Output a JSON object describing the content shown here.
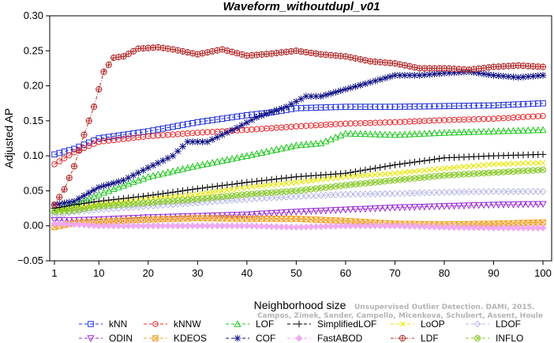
{
  "chart_data": {
    "type": "line",
    "title": "Waveform_withoutdupl_v01",
    "xlabel": "Neighborhood size",
    "ylabel": "Adjusted AP",
    "xlim": [
      1,
      100
    ],
    "ylim": [
      -0.05,
      0.3
    ],
    "xticks": [
      "1",
      "10",
      "20",
      "30",
      "40",
      "50",
      "60",
      "70",
      "80",
      "90",
      "100"
    ],
    "yticks": [
      "−0.05",
      "0.00",
      "0.05",
      "0.10",
      "0.15",
      "0.20",
      "0.25",
      "0.30"
    ],
    "watermark": [
      "Unsupervised Outlier Detection. DAMI, 2015.",
      "Campos, Zimek, Sander, Campello, Micenkova, Schubert, Assent, Houle"
    ],
    "legend_position": "bottom",
    "series": [
      {
        "name": "kNN",
        "color": "#1f2fd6",
        "marker": "square",
        "dash": "dash",
        "points": [
          [
            1,
            0.102
          ],
          [
            5,
            0.11
          ],
          [
            10,
            0.125
          ],
          [
            20,
            0.135
          ],
          [
            30,
            0.148
          ],
          [
            40,
            0.158
          ],
          [
            45,
            0.162
          ],
          [
            50,
            0.168
          ],
          [
            60,
            0.17
          ],
          [
            70,
            0.17
          ],
          [
            80,
            0.171
          ],
          [
            90,
            0.172
          ],
          [
            100,
            0.175
          ]
        ]
      },
      {
        "name": "kNNW",
        "color": "#e6252a",
        "marker": "circle",
        "dash": "dash",
        "points": [
          [
            1,
            0.088
          ],
          [
            5,
            0.105
          ],
          [
            10,
            0.12
          ],
          [
            20,
            0.128
          ],
          [
            30,
            0.133
          ],
          [
            40,
            0.137
          ],
          [
            50,
            0.142
          ],
          [
            60,
            0.146
          ],
          [
            70,
            0.148
          ],
          [
            80,
            0.151
          ],
          [
            90,
            0.153
          ],
          [
            100,
            0.157
          ]
        ]
      },
      {
        "name": "LOF",
        "color": "#1ec81e",
        "marker": "triangle",
        "dash": "dash",
        "points": [
          [
            1,
            0.022
          ],
          [
            5,
            0.03
          ],
          [
            10,
            0.045
          ],
          [
            20,
            0.07
          ],
          [
            30,
            0.086
          ],
          [
            40,
            0.1
          ],
          [
            50,
            0.115
          ],
          [
            55,
            0.118
          ],
          [
            60,
            0.132
          ],
          [
            70,
            0.13
          ],
          [
            80,
            0.133
          ],
          [
            90,
            0.135
          ],
          [
            100,
            0.137
          ]
        ]
      },
      {
        "name": "SimplifiedLOF",
        "color": "#000000",
        "marker": "plus",
        "dash": "dash",
        "points": [
          [
            1,
            0.025
          ],
          [
            5,
            0.03
          ],
          [
            10,
            0.035
          ],
          [
            20,
            0.043
          ],
          [
            30,
            0.053
          ],
          [
            40,
            0.062
          ],
          [
            50,
            0.07
          ],
          [
            60,
            0.075
          ],
          [
            70,
            0.087
          ],
          [
            80,
            0.097
          ],
          [
            90,
            0.1
          ],
          [
            100,
            0.102
          ]
        ]
      },
      {
        "name": "LoOP",
        "color": "#e6e600",
        "marker": "x",
        "dash": "dash",
        "points": [
          [
            1,
            0.02
          ],
          [
            5,
            0.025
          ],
          [
            10,
            0.03
          ],
          [
            20,
            0.038
          ],
          [
            30,
            0.045
          ],
          [
            40,
            0.055
          ],
          [
            50,
            0.062
          ],
          [
            60,
            0.07
          ],
          [
            70,
            0.075
          ],
          [
            80,
            0.082
          ],
          [
            90,
            0.088
          ],
          [
            100,
            0.09
          ]
        ]
      },
      {
        "name": "LDOF",
        "color": "#b8b8e6",
        "marker": "diamond",
        "dash": "dash",
        "points": [
          [
            1,
            0.015
          ],
          [
            5,
            0.02
          ],
          [
            10,
            0.023
          ],
          [
            20,
            0.028
          ],
          [
            30,
            0.033
          ],
          [
            40,
            0.038
          ],
          [
            50,
            0.042
          ],
          [
            60,
            0.045
          ],
          [
            70,
            0.046
          ],
          [
            80,
            0.048
          ],
          [
            90,
            0.049
          ],
          [
            100,
            0.049
          ]
        ]
      },
      {
        "name": "ODIN",
        "color": "#9a28d2",
        "marker": "tri-down",
        "dash": "dash",
        "points": [
          [
            1,
            0.008
          ],
          [
            5,
            0.008
          ],
          [
            10,
            0.009
          ],
          [
            20,
            0.012
          ],
          [
            30,
            0.014
          ],
          [
            40,
            0.016
          ],
          [
            50,
            0.02
          ],
          [
            60,
            0.023
          ],
          [
            70,
            0.026
          ],
          [
            80,
            0.028
          ],
          [
            90,
            0.03
          ],
          [
            100,
            0.031
          ]
        ]
      },
      {
        "name": "KDEOS",
        "color": "#f0a01e",
        "marker": "boxx",
        "dash": "dash",
        "points": [
          [
            1,
            -0.002
          ],
          [
            5,
            0.004
          ],
          [
            10,
            0.006
          ],
          [
            20,
            0.009
          ],
          [
            30,
            0.011
          ],
          [
            40,
            0.01
          ],
          [
            50,
            0.01
          ],
          [
            60,
            0.007
          ],
          [
            70,
            0.003
          ],
          [
            80,
            0.002
          ],
          [
            90,
            0.003
          ],
          [
            100,
            0.005
          ]
        ]
      },
      {
        "name": "COF",
        "color": "#0f0f82",
        "marker": "star",
        "dash": "dash",
        "points": [
          [
            1,
            0.03
          ],
          [
            5,
            0.035
          ],
          [
            10,
            0.055
          ],
          [
            15,
            0.065
          ],
          [
            20,
            0.083
          ],
          [
            25,
            0.1
          ],
          [
            28,
            0.12
          ],
          [
            32,
            0.12
          ],
          [
            38,
            0.14
          ],
          [
            42,
            0.155
          ],
          [
            48,
            0.17
          ],
          [
            52,
            0.185
          ],
          [
            55,
            0.185
          ],
          [
            60,
            0.195
          ],
          [
            65,
            0.205
          ],
          [
            70,
            0.215
          ],
          [
            75,
            0.215
          ],
          [
            80,
            0.218
          ],
          [
            85,
            0.22
          ],
          [
            90,
            0.215
          ],
          [
            95,
            0.212
          ],
          [
            100,
            0.215
          ]
        ]
      },
      {
        "name": "FastABOD",
        "color": "#f0aaf0",
        "marker": "diamond-filled",
        "dash": "dash",
        "points": [
          [
            1,
            0.003
          ],
          [
            5,
            0.002
          ],
          [
            10,
            0.0
          ],
          [
            20,
            0.0
          ],
          [
            30,
            0.0
          ],
          [
            40,
            0.0
          ],
          [
            50,
            -0.002
          ],
          [
            60,
            0.0
          ],
          [
            70,
            0.0
          ],
          [
            80,
            -0.002
          ],
          [
            90,
            -0.003
          ],
          [
            100,
            -0.003
          ]
        ]
      },
      {
        "name": "LDF",
        "color": "#b42a2a",
        "marker": "circle-plus",
        "dash": "dashdot",
        "points": [
          [
            1,
            0.03
          ],
          [
            3,
            0.052
          ],
          [
            5,
            0.085
          ],
          [
            7,
            0.13
          ],
          [
            9,
            0.17
          ],
          [
            11,
            0.22
          ],
          [
            13,
            0.24
          ],
          [
            15,
            0.242
          ],
          [
            18,
            0.253
          ],
          [
            22,
            0.255
          ],
          [
            25,
            0.252
          ],
          [
            30,
            0.245
          ],
          [
            35,
            0.252
          ],
          [
            40,
            0.243
          ],
          [
            45,
            0.246
          ],
          [
            50,
            0.25
          ],
          [
            55,
            0.245
          ],
          [
            60,
            0.242
          ],
          [
            65,
            0.235
          ],
          [
            70,
            0.232
          ],
          [
            75,
            0.225
          ],
          [
            80,
            0.225
          ],
          [
            85,
            0.223
          ],
          [
            90,
            0.227
          ],
          [
            95,
            0.229
          ],
          [
            100,
            0.227
          ]
        ]
      },
      {
        "name": "INFLO",
        "color": "#88c828",
        "marker": "circle-x",
        "dash": "dash",
        "points": [
          [
            1,
            0.02
          ],
          [
            5,
            0.022
          ],
          [
            10,
            0.028
          ],
          [
            20,
            0.033
          ],
          [
            30,
            0.038
          ],
          [
            40,
            0.045
          ],
          [
            50,
            0.05
          ],
          [
            60,
            0.058
          ],
          [
            70,
            0.065
          ],
          [
            80,
            0.072
          ],
          [
            90,
            0.076
          ],
          [
            100,
            0.08
          ]
        ]
      }
    ]
  }
}
